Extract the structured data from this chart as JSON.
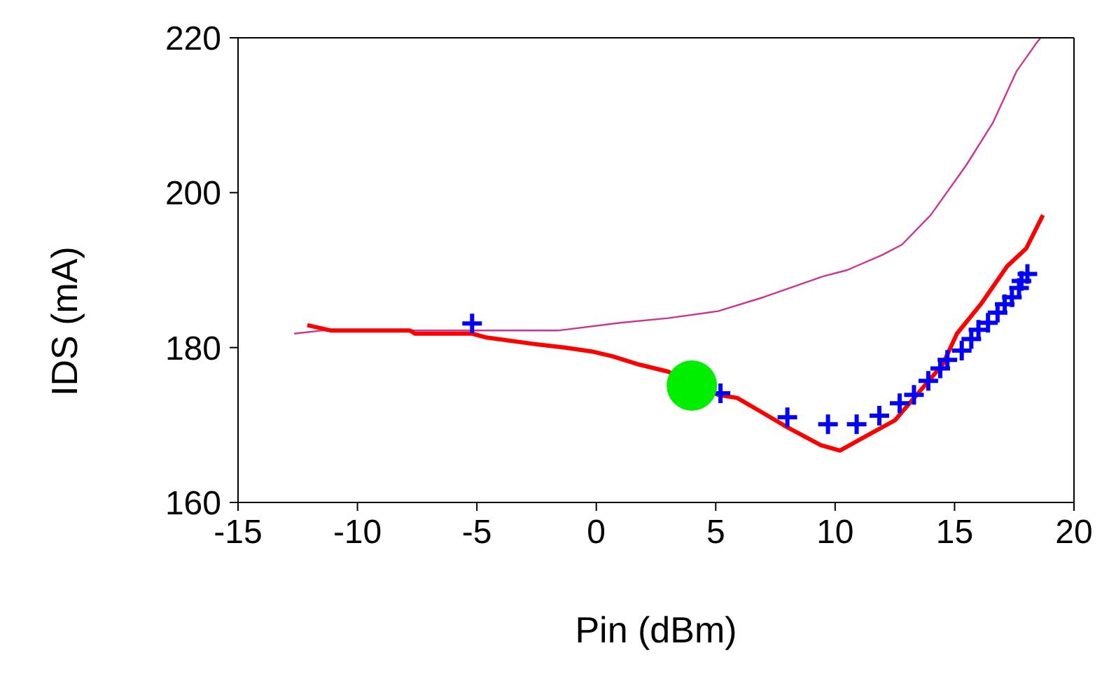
{
  "chart_data": {
    "type": "line",
    "xlabel": "Pin (dBm)",
    "ylabel": "IDS (mA)",
    "xlim": [
      -15,
      20
    ],
    "xticks": [
      -15,
      -10,
      -5,
      0,
      5,
      10,
      15,
      20
    ],
    "ylim": [
      160,
      220
    ],
    "yticks": [
      160,
      180,
      200,
      220
    ],
    "grid": false,
    "series": [
      {
        "color": "#cc3399",
        "marker": "none",
        "x": [
          -12.65,
          -11.5,
          -8,
          -4,
          -1.6,
          1,
          3,
          5.1,
          7,
          9.5,
          10.5,
          12,
          12.8,
          14,
          15.5,
          16.6,
          17.6,
          18.4,
          18.6
        ],
        "values": [
          181.8,
          182.2,
          182.2,
          182.2,
          182.2,
          183.2,
          183.8,
          184.7,
          186.5,
          189.2,
          190,
          192,
          193.3,
          197.1,
          203.6,
          209,
          215.7,
          219.2,
          220
        ]
      },
      {
        "color": "#ff0000",
        "marker": "none",
        "x": [
          -12.1,
          -11.1,
          -7.8,
          -7.6,
          -5.2,
          -4.6,
          -2.7,
          -1.3,
          -0.2,
          0.65,
          1.8,
          3,
          5.1,
          5.9,
          6.9,
          8,
          9.4,
          10.2,
          11.55,
          12.5,
          13.5,
          14.5,
          15.1,
          16.1,
          17.2,
          18,
          18.7
        ],
        "values": [
          182.9,
          182.2,
          182.2,
          181.8,
          181.8,
          181.3,
          180.5,
          180,
          179.5,
          178.9,
          177.8,
          176.9,
          173.9,
          173.5,
          171.7,
          169.7,
          167.4,
          166.7,
          169,
          170.6,
          174.2,
          177.8,
          181.8,
          185.6,
          190.5,
          192.8,
          197.1
        ]
      },
      {
        "type": "scatter",
        "color": "#0000ff",
        "marker": "cross",
        "x": [
          -5.2,
          5.2,
          8,
          9.7,
          10.9,
          11.85,
          12.7,
          13.3,
          13.9,
          14.4,
          14.7,
          15.3,
          15.7,
          16,
          16.4,
          16.8,
          17.1,
          17.4,
          17.7,
          17.8,
          18.05
        ],
        "values": [
          183.1,
          174.1,
          171,
          170.1,
          170.1,
          171.2,
          172.8,
          173.9,
          175.7,
          177.3,
          178.4,
          179.6,
          181.1,
          182.3,
          183.2,
          184.5,
          185.6,
          186.5,
          187.7,
          188.6,
          189.5
        ]
      },
      {
        "type": "scatter",
        "color": "#00ee00",
        "marker": "circle",
        "x": [
          4
        ],
        "values": [
          175.1
        ]
      }
    ]
  }
}
